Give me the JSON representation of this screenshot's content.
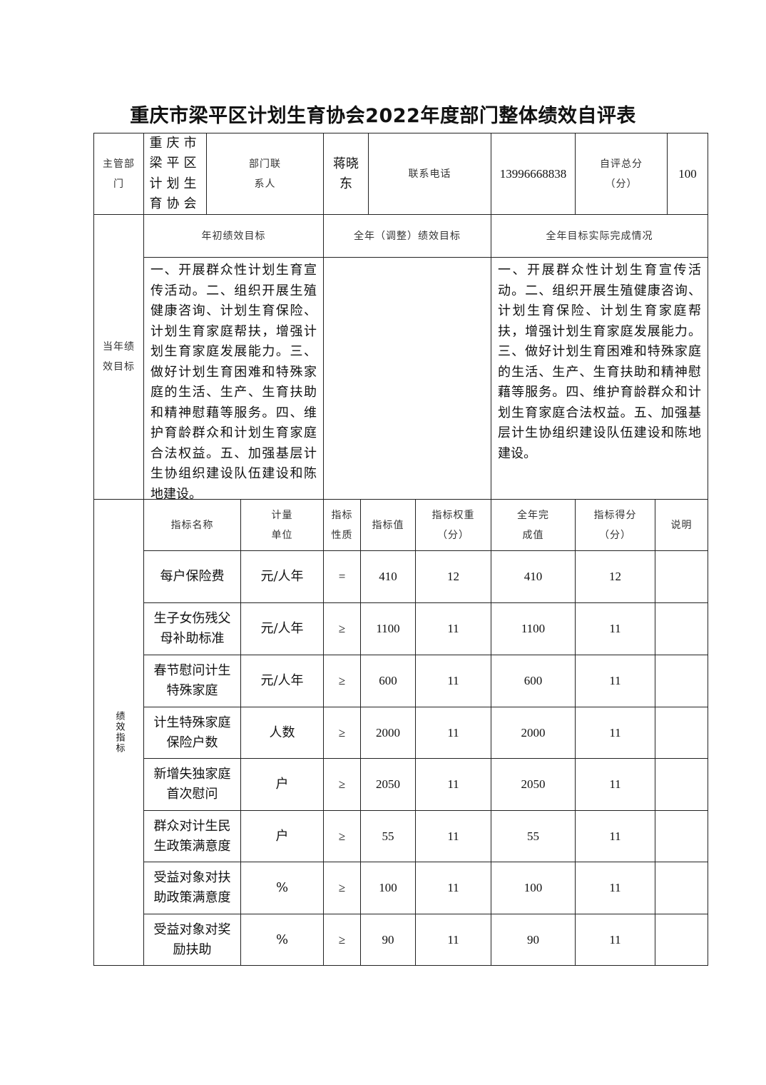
{
  "title": "重庆市梁平区计划生育协会2022年度部门整体绩效自评表",
  "header": {
    "dept_label": "主管部门",
    "dept_value": "重庆市梁平区计划生育协会",
    "contact_label": "部门联系人",
    "contact_value": "蒋晓东",
    "phone_label": "联系电话",
    "phone_value": "13996668838",
    "score_label": "自评总分（分）",
    "score_value": "100"
  },
  "goals": {
    "section_label": "当年绩效目标",
    "initial_label": "年初绩效目标",
    "adjusted_label": "全年（调整）绩效目标",
    "actual_label": "全年目标实际完成情况",
    "initial_text": "一、开展群众性计划生育宣传活动。二、组织开展生殖健康咨询、计划生育保险、计划生育家庭帮扶，增强计划生育家庭发展能力。三、做好计划生育困难和特殊家庭的生活、生产、生育扶助和精神慰藉等服务。四、维护育龄群众和计划生育家庭合法权益。五、加强基层计生协组织建设队伍建设和陈地建设。",
    "adjusted_text": "",
    "actual_text": "一、开展群众性计划生育宣传活动。二、组织开展生殖健康咨询、计划生育保险、计划生育家庭帮扶，增强计划生育家庭发展能力。三、做好计划生育困难和特殊家庭的生活、生产、生育扶助和精神慰藉等服务。四、维护育龄群众和计划生育家庭合法权益。五、加强基层计生协组织建设队伍建设和陈地建设。"
  },
  "indicators": {
    "section_label": "绩效指标",
    "columns": [
      "指标名称",
      "计量单位",
      "指标性质",
      "指标值",
      "指标权重（分）",
      "全年完成值",
      "指标得分（分）",
      "说明"
    ],
    "rows": [
      [
        "每户保险费",
        "元/人年",
        "=",
        "410",
        "12",
        "410",
        "12",
        ""
      ],
      [
        "生子女伤残父母补助标准",
        "元/人年",
        "≥",
        "1100",
        "11",
        "1100",
        "11",
        ""
      ],
      [
        "春节慰问计生特殊家庭",
        "元/人年",
        "≥",
        "600",
        "11",
        "600",
        "11",
        ""
      ],
      [
        "计生特殊家庭保险户数",
        "人数",
        "≥",
        "2000",
        "11",
        "2000",
        "11",
        ""
      ],
      [
        "新增失独家庭首次慰问",
        "户",
        "≥",
        "2050",
        "11",
        "2050",
        "11",
        ""
      ],
      [
        "群众对计生民生政策满意度",
        "户",
        "≥",
        "55",
        "11",
        "55",
        "11",
        ""
      ],
      [
        "受益对象对扶助政策满意度",
        "%",
        "≥",
        "100",
        "11",
        "100",
        "11",
        ""
      ],
      [
        "受益对象对奖励扶助",
        "%",
        "≥",
        "90",
        "11",
        "90",
        "11",
        ""
      ]
    ]
  }
}
